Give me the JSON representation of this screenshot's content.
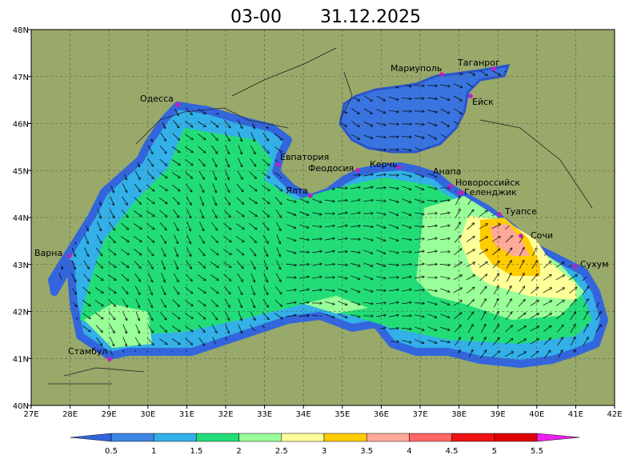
{
  "title": {
    "time": "03-00",
    "date": "31.12.2025"
  },
  "axes": {
    "lat_labels": [
      "48N",
      "47N",
      "46N",
      "45N",
      "44N",
      "43N",
      "42N",
      "41N",
      "40N"
    ],
    "lon_labels": [
      "27E",
      "28E",
      "29E",
      "30E",
      "31E",
      "32E",
      "33E",
      "34E",
      "35E",
      "36E",
      "37E",
      "38E",
      "39E",
      "40E",
      "41E",
      "42E"
    ]
  },
  "cities": [
    "Одесса",
    "Мариуполь",
    "Таганрог",
    "Ейск",
    "Евпатория",
    "Феодосия",
    "Керчь",
    "Анапа",
    "Новороссийск",
    "Геленджик",
    "Ялта",
    "Туапсе",
    "Сочи",
    "Сухум",
    "Варна",
    "Стамбул"
  ],
  "colorbar": {
    "labels": [
      "0.5",
      "1",
      "1.5",
      "2",
      "2.5",
      "3",
      "3.5",
      "4",
      "4.5",
      "5",
      "5.5"
    ]
  }
}
